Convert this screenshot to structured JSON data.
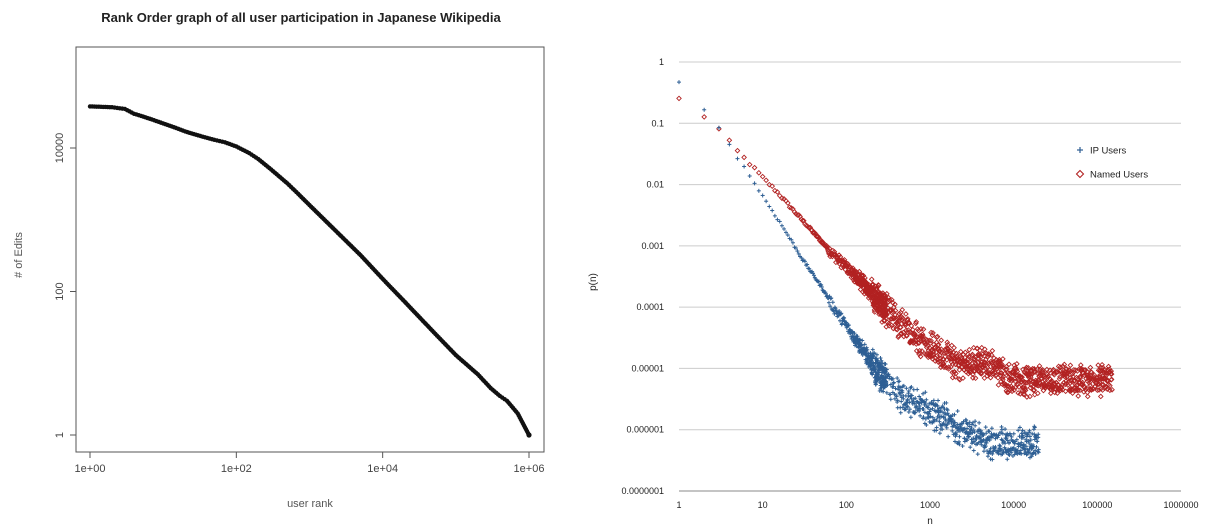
{
  "chart_data": [
    {
      "type": "line",
      "title": "Rank Order graph of all user participation in Japanese Wikipedia",
      "xlabel": "user rank",
      "ylabel": "# of Edits",
      "x_scale": "log",
      "y_scale": "log",
      "xlim": [
        1,
        1000000
      ],
      "ylim": [
        1,
        100000
      ],
      "xticks": [
        "1e+00",
        "1e+02",
        "1e+04",
        "1e+06"
      ],
      "yticks": [
        "1",
        "100",
        "10000"
      ],
      "grid": false,
      "series": [
        {
          "x": [
            1,
            2,
            3,
            4,
            5,
            7,
            10,
            15,
            20,
            30,
            50,
            70,
            100,
            150,
            200,
            300,
            500,
            700,
            1000,
            2000,
            5000,
            10000,
            20000,
            50000,
            100000,
            200000,
            300000,
            400000,
            500000,
            700000,
            1000000
          ],
          "y": [
            38000,
            37000,
            35000,
            30000,
            28000,
            25000,
            22000,
            19000,
            17000,
            15000,
            13000,
            12000,
            10500,
            8500,
            7000,
            5000,
            3200,
            2300,
            1600,
            800,
            320,
            150,
            72,
            27,
            13,
            7,
            4.5,
            3.5,
            3,
            2,
            1
          ]
        }
      ]
    },
    {
      "type": "scatter",
      "xlabel": "n",
      "ylabel": "p(n)",
      "x_scale": "log",
      "y_scale": "log",
      "xlim": [
        1,
        1000000
      ],
      "ylim": [
        1e-07,
        1
      ],
      "xticks": [
        "1",
        "10",
        "100",
        "1000",
        "10000",
        "100000",
        "1000000"
      ],
      "yticks": [
        "1",
        "0.1",
        "0.01",
        "0.001",
        "0.0001",
        "0.00001",
        "0.000001",
        "0.0000001"
      ],
      "grid": true,
      "legend_position": "right",
      "series": [
        {
          "name": "IP Users",
          "marker": "plus",
          "color": "#2e5f94",
          "x": [
            1,
            2,
            3,
            4,
            5,
            7,
            10,
            15,
            20,
            30,
            50,
            70,
            100,
            150,
            200,
            300,
            400,
            500,
            700,
            1000,
            2000,
            5000,
            10000,
            20000
          ],
          "y": [
            0.45,
            0.17,
            0.085,
            0.045,
            0.028,
            0.014,
            0.0065,
            0.0028,
            0.0015,
            0.0006,
            0.00022,
            0.0001,
            5e-05,
            2.2e-05,
            1.2e-05,
            6e-06,
            4e-06,
            3e-06,
            2.5e-06,
            2e-06,
            1.2e-06,
            6e-07,
            6e-07,
            6e-07
          ]
        },
        {
          "name": "Named Users",
          "marker": "diamond",
          "color": "#b22222",
          "x": [
            1,
            2,
            3,
            4,
            5,
            7,
            10,
            15,
            20,
            30,
            50,
            70,
            100,
            150,
            200,
            300,
            500,
            700,
            1000,
            2000,
            5000,
            10000,
            20000,
            50000,
            100000,
            150000
          ],
          "y": [
            0.25,
            0.13,
            0.08,
            0.05,
            0.035,
            0.022,
            0.013,
            0.0075,
            0.0048,
            0.0026,
            0.0012,
            0.00072,
            0.00045,
            0.00026,
            0.00017,
            9e-05,
            4.5e-05,
            3.2e-05,
            2.2e-05,
            1.2e-05,
            1.2e-05,
            6.5e-06,
            6.5e-06,
            6.5e-06,
            6.5e-06,
            6.5e-06
          ]
        }
      ]
    }
  ]
}
